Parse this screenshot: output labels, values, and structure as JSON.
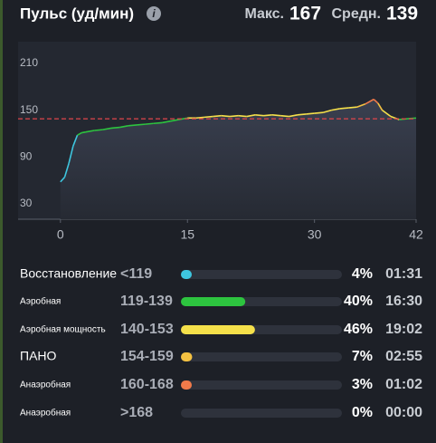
{
  "header": {
    "title": "Пульс (уд/мин)",
    "max_label": "Макс.",
    "max_value": 167,
    "avg_label": "Средн.",
    "avg_value": 139
  },
  "chart_data": {
    "type": "line",
    "x": [
      0,
      0.5,
      1,
      1.5,
      2,
      2.5,
      3,
      4,
      5,
      6,
      7,
      8,
      9,
      10,
      11,
      12,
      13,
      14,
      15,
      16,
      17,
      18,
      19,
      20,
      21,
      22,
      23,
      24,
      25,
      26,
      27,
      28,
      29,
      30,
      31,
      32,
      33,
      34,
      35,
      36,
      37,
      37.5,
      38,
      39,
      40,
      41,
      42
    ],
    "values": [
      58,
      64,
      82,
      104,
      118,
      121,
      122,
      124,
      125,
      127,
      128,
      130,
      131,
      132,
      133,
      134,
      136,
      138,
      140,
      140,
      141,
      142,
      143,
      142,
      143,
      142,
      144,
      143,
      144,
      143,
      142,
      144,
      145,
      146,
      147,
      150,
      152,
      153,
      154,
      158,
      164,
      159,
      150,
      142,
      138,
      139,
      140
    ],
    "xlim": [
      -5,
      42
    ],
    "xticks": [
      0,
      15,
      30,
      42
    ],
    "ylim": [
      10,
      238
    ],
    "yticks": [
      30,
      90,
      150,
      210
    ]
  },
  "zones": {
    "rows": [
      {
        "name": "Восстановление",
        "range": "<119",
        "color": "#3ec6df"
      },
      {
        "name": "Аэробная",
        "range": "119-139",
        "color": "#2dc43f"
      },
      {
        "name": "Аэробная мощность",
        "range": "140-153",
        "color": "#f5e04a"
      },
      {
        "name": "ПАНО",
        "range": "154-159",
        "color": "#f5c242"
      },
      {
        "name": "Анаэробная",
        "range": "160-168",
        "color": "#f07a4a"
      },
      {
        "name": "Анаэробная",
        "range": ">168",
        "color": "#e04040"
      }
    ],
    "values": [
      4,
      40,
      46,
      7,
      3,
      0
    ],
    "value_labels": [
      "4%",
      "40%",
      "46%",
      "7%",
      "3%",
      "0%"
    ],
    "times": [
      "01:31",
      "16:30",
      "19:02",
      "02:55",
      "01:02",
      "00:00"
    ]
  }
}
